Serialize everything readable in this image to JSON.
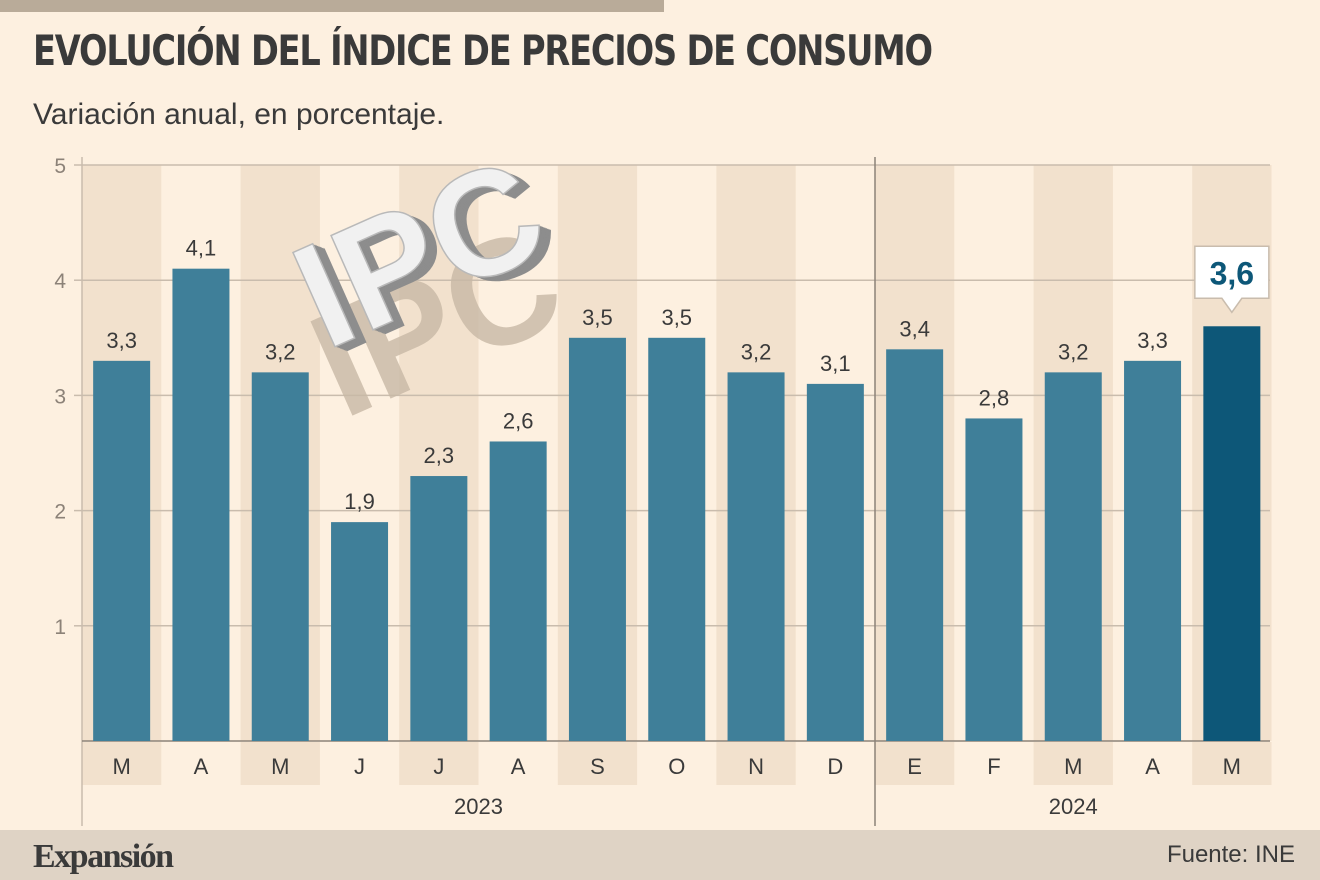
{
  "header": {
    "title": "EVOLUCIÓN DEL ÍNDICE DE PRECIOS DE CONSUMO",
    "subtitle": "Variación anual, en porcentaje."
  },
  "decoration": {
    "overlay_text": "IPC"
  },
  "footer": {
    "brand": "Expansión",
    "source": "Fuente: INE"
  },
  "colors": {
    "bar": "#3f7f99",
    "bar_highlight": "#0d5778",
    "background": "#fdf0e0",
    "band": "#f2e1cd",
    "grid": "#c9bcad",
    "text": "#3a3a3a",
    "footer_bg": "#dfd3c5"
  },
  "chart_data": {
    "type": "bar",
    "categories": [
      "M",
      "A",
      "M",
      "J",
      "J",
      "A",
      "S",
      "O",
      "N",
      "D",
      "E",
      "F",
      "M",
      "A",
      "M"
    ],
    "values": [
      3.3,
      4.1,
      3.2,
      1.9,
      2.3,
      2.6,
      3.5,
      3.5,
      3.2,
      3.1,
      3.4,
      2.8,
      3.2,
      3.3,
      3.6
    ],
    "value_labels": [
      "3,3",
      "4,1",
      "3,2",
      "1,9",
      "2,3",
      "2,6",
      "3,5",
      "3,5",
      "3,2",
      "3,1",
      "3,4",
      "2,8",
      "3,2",
      "3,3",
      "3,6"
    ],
    "groups": [
      {
        "label": "2023",
        "count": 10
      },
      {
        "label": "2024",
        "count": 5
      }
    ],
    "highlight_index": 14,
    "y_ticks": [
      "1",
      "2",
      "3",
      "4",
      "5"
    ],
    "ylim": [
      0,
      5
    ],
    "title": "EVOLUCIÓN DEL ÍNDICE DE PRECIOS DE CONSUMO",
    "subtitle": "Variación anual, en porcentaje.",
    "xlabel": "",
    "ylabel": "",
    "grid": true,
    "legend": "none"
  }
}
